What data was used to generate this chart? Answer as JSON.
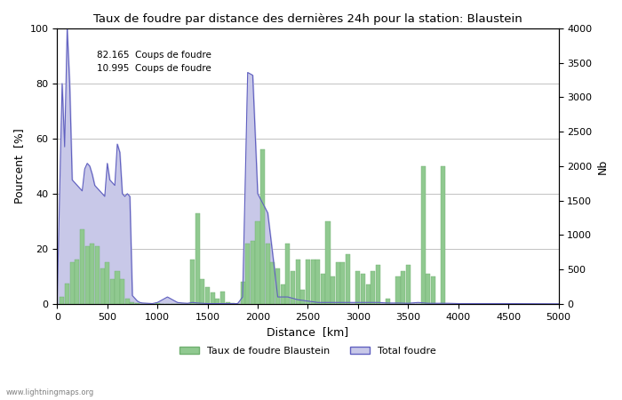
{
  "title": "Taux de foudre par distance des dernières 24h pour la station: Blaustein",
  "xlabel": "Distance  [km]",
  "ylabel_left": "Pourcent  [%]",
  "ylabel_right": "Nb",
  "annotation_line1": "82.165  Coups de foudre",
  "annotation_line2": "10.995  Coups de foudre",
  "watermark": "www.lightningmaps.org",
  "legend_green": "Taux de foudre Blaustein",
  "legend_blue": "Total foudre",
  "xlim": [
    0,
    5000
  ],
  "ylim_left": [
    0,
    100
  ],
  "ylim_right": [
    0,
    4000
  ],
  "xticks": [
    0,
    500,
    1000,
    1500,
    2000,
    2500,
    3000,
    3500,
    4000,
    4500,
    5000
  ],
  "yticks_left": [
    0,
    20,
    40,
    60,
    80,
    100
  ],
  "yticks_right": [
    0,
    500,
    1000,
    1500,
    2000,
    2500,
    3000,
    3500,
    4000
  ],
  "bg_color": "#ffffff",
  "grid_color": "#aaaaaa",
  "bar_color_green": "#90c990",
  "fill_color_blue": "#c8c8e8",
  "line_color_blue": "#6060c0",
  "green_bars": [
    [
      50,
      2.5
    ],
    [
      100,
      7.5
    ],
    [
      150,
      15.0
    ],
    [
      200,
      16.0
    ],
    [
      250,
      27.0
    ],
    [
      300,
      21.0
    ],
    [
      350,
      22.0
    ],
    [
      400,
      21.0
    ],
    [
      450,
      13.0
    ],
    [
      500,
      15.0
    ],
    [
      550,
      9.0
    ],
    [
      600,
      12.0
    ],
    [
      650,
      9.0
    ],
    [
      700,
      2.0
    ],
    [
      750,
      0.5
    ],
    [
      800,
      0.2
    ],
    [
      850,
      0.0
    ],
    [
      900,
      0.0
    ],
    [
      950,
      0.0
    ],
    [
      1000,
      0.2
    ],
    [
      1050,
      0.0
    ],
    [
      1100,
      0.0
    ],
    [
      1150,
      0.0
    ],
    [
      1200,
      0.0
    ],
    [
      1250,
      0.0
    ],
    [
      1300,
      0.0
    ],
    [
      1350,
      16.0
    ],
    [
      1400,
      33.0
    ],
    [
      1450,
      9.0
    ],
    [
      1500,
      6.0
    ],
    [
      1550,
      4.0
    ],
    [
      1600,
      2.0
    ],
    [
      1650,
      4.5
    ],
    [
      1700,
      0.5
    ],
    [
      1750,
      0.2
    ],
    [
      1800,
      0.0
    ],
    [
      1850,
      8.0
    ],
    [
      1900,
      22.0
    ],
    [
      1950,
      23.0
    ],
    [
      2000,
      30.0
    ],
    [
      2050,
      56.0
    ],
    [
      2100,
      22.0
    ],
    [
      2150,
      15.0
    ],
    [
      2200,
      13.0
    ],
    [
      2250,
      7.0
    ],
    [
      2300,
      22.0
    ],
    [
      2350,
      12.0
    ],
    [
      2400,
      16.0
    ],
    [
      2450,
      5.0
    ],
    [
      2500,
      16.0
    ],
    [
      2550,
      16.0
    ],
    [
      2600,
      16.0
    ],
    [
      2650,
      11.0
    ],
    [
      2700,
      30.0
    ],
    [
      2750,
      10.0
    ],
    [
      2800,
      15.0
    ],
    [
      2850,
      15.0
    ],
    [
      2900,
      18.0
    ],
    [
      2950,
      0.0
    ],
    [
      3000,
      12.0
    ],
    [
      3050,
      11.0
    ],
    [
      3100,
      7.0
    ],
    [
      3150,
      12.0
    ],
    [
      3200,
      14.0
    ],
    [
      3250,
      0.0
    ],
    [
      3300,
      2.0
    ],
    [
      3350,
      0.0
    ],
    [
      3400,
      10.0
    ],
    [
      3450,
      12.0
    ],
    [
      3500,
      14.0
    ],
    [
      3550,
      0.0
    ],
    [
      3600,
      0.0
    ],
    [
      3650,
      50.0
    ],
    [
      3700,
      11.0
    ],
    [
      3750,
      10.0
    ],
    [
      3800,
      0.0
    ],
    [
      3850,
      50.0
    ],
    [
      3900,
      0.0
    ],
    [
      3950,
      0.0
    ],
    [
      4000,
      0.0
    ],
    [
      4050,
      0.0
    ],
    [
      4100,
      0.0
    ],
    [
      4150,
      0.0
    ],
    [
      4200,
      0.0
    ],
    [
      4250,
      0.0
    ],
    [
      4300,
      0.0
    ],
    [
      4350,
      0.0
    ],
    [
      4400,
      0.0
    ],
    [
      4450,
      0.0
    ],
    [
      4500,
      0.0
    ]
  ],
  "blue_line_x": [
    0,
    25,
    50,
    75,
    100,
    125,
    150,
    175,
    200,
    225,
    250,
    275,
    300,
    325,
    350,
    375,
    400,
    425,
    450,
    475,
    500,
    525,
    550,
    575,
    600,
    625,
    650,
    675,
    700,
    725,
    750,
    775,
    800,
    825,
    850,
    900,
    950,
    1000,
    1050,
    1100,
    1150,
    1200,
    1250,
    1300,
    1350,
    1400,
    1450,
    1500,
    1550,
    1600,
    1700,
    1800,
    1850,
    1900,
    1950,
    2000,
    2100,
    2200,
    2300,
    2400,
    2500,
    2600,
    2700,
    2800,
    2900,
    3000,
    3100,
    3200,
    3300,
    3400,
    3500,
    3600,
    3700,
    3800,
    3900,
    4000,
    4100,
    4500,
    5000
  ],
  "blue_line_y": [
    0,
    40,
    80,
    57,
    100,
    80,
    45,
    44,
    43,
    42,
    41,
    49,
    51,
    50,
    47,
    43,
    42,
    41,
    40,
    39,
    51,
    45,
    44,
    43,
    58,
    55,
    40,
    39,
    40,
    39,
    3,
    2,
    1,
    0.5,
    0.3,
    0.2,
    0.1,
    0.5,
    1.5,
    2.5,
    1.5,
    0.5,
    0.3,
    0.2,
    0.5,
    0.3,
    0.2,
    0.1,
    0.1,
    0.1,
    0.1,
    0.1,
    2.5,
    84,
    83,
    40,
    33,
    2.5,
    2.5,
    1.5,
    1,
    0.5,
    0.5,
    0.5,
    0.5,
    0.5,
    0.5,
    0.5,
    0.3,
    0.3,
    0.2,
    0.5,
    0.2,
    0.2,
    0.2,
    0.1,
    0.1,
    0.1,
    0
  ]
}
